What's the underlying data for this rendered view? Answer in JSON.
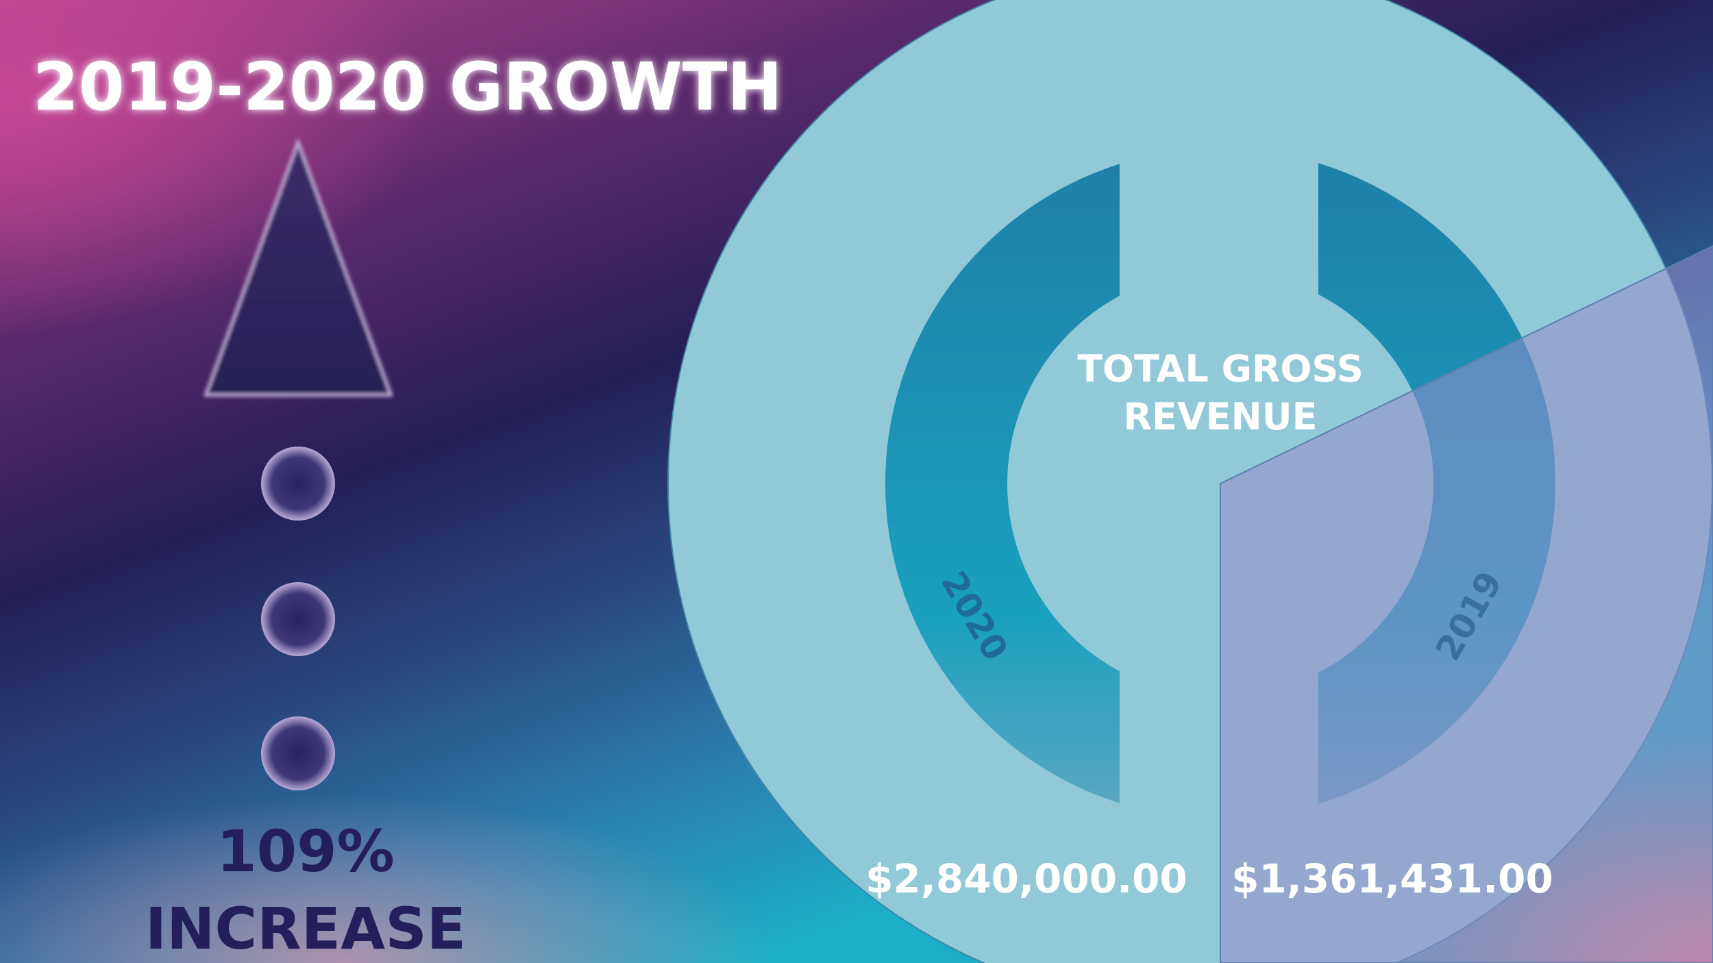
{
  "title": "2019-2020 GROWTH",
  "growth": {
    "percent": "109%",
    "label": "INCREASE"
  },
  "revenue": {
    "label_line1": "TOTAL GROSS",
    "label_line2": "REVENUE",
    "items": [
      {
        "year": "2020",
        "amount": "$2,840,000.00"
      },
      {
        "year": "2019",
        "amount": "$1,361,431.00"
      }
    ]
  }
}
